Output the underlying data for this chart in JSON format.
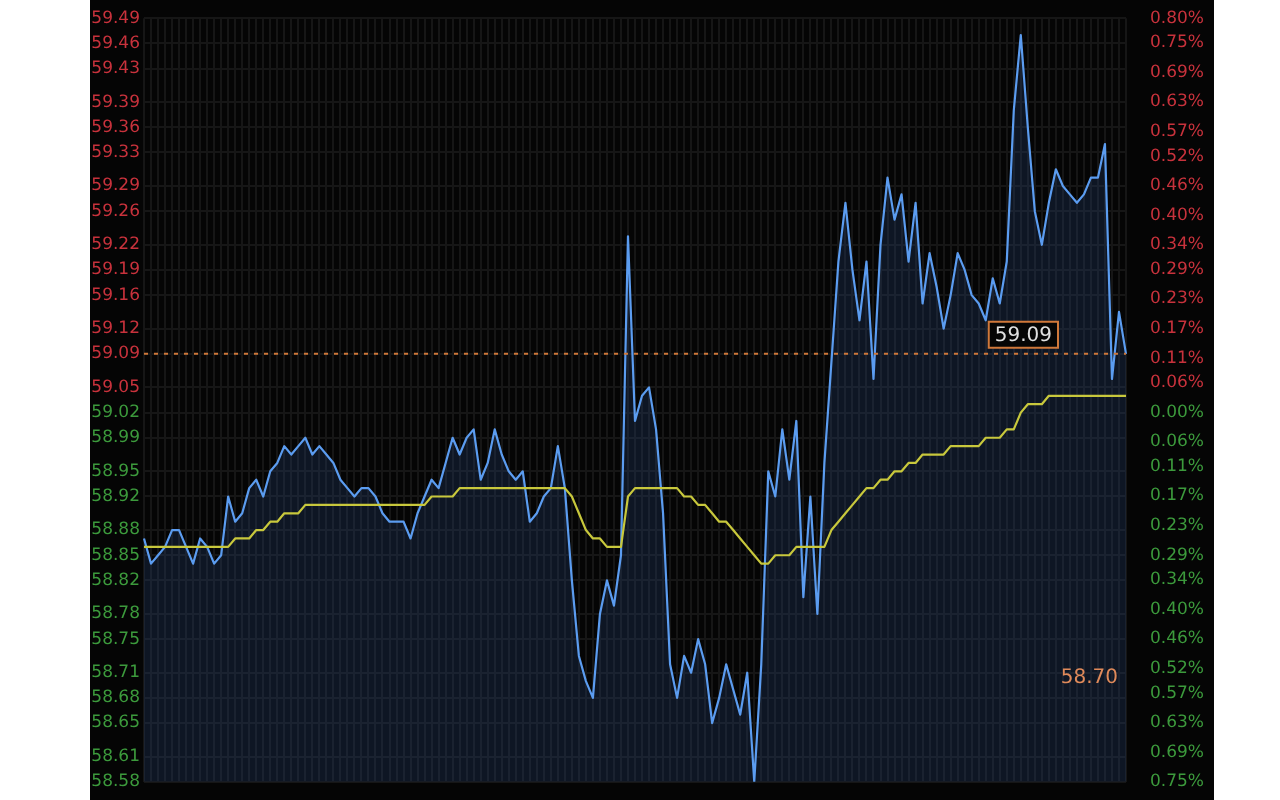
{
  "chart_data": {
    "type": "line",
    "categories": [
      null,
      null,
      null,
      null,
      null,
      null,
      null,
      null,
      null,
      null,
      null,
      null,
      null,
      null,
      null,
      null,
      null,
      null,
      null,
      null,
      null,
      null,
      null,
      null,
      null,
      null,
      null,
      null,
      null,
      null,
      null,
      null,
      null,
      null,
      null,
      null,
      null,
      null,
      null,
      null,
      null,
      null,
      null,
      null,
      null,
      null,
      null,
      null,
      null,
      null,
      null,
      null,
      null,
      null,
      null,
      null,
      null,
      null,
      null,
      null,
      null,
      null,
      null,
      null,
      null,
      null,
      null,
      null,
      null,
      null,
      null,
      null,
      null,
      null,
      null,
      null,
      null,
      null,
      null,
      null,
      null,
      null,
      null,
      null,
      null,
      null,
      null,
      null,
      null,
      null,
      null,
      null,
      null,
      null,
      null,
      null,
      null,
      null,
      null,
      null,
      null,
      null,
      null,
      null,
      null,
      null,
      null,
      null,
      null,
      null,
      null,
      null,
      null,
      null,
      null,
      null,
      null,
      null,
      null,
      null,
      null,
      null,
      null,
      null,
      null,
      null,
      null,
      null,
      null,
      null,
      null,
      null,
      null,
      null,
      null,
      null,
      null,
      null,
      null,
      null,
      null
    ],
    "series": [
      {
        "type": "area",
        "color": "#5b9cf0",
        "values": [
          58.87,
          58.84,
          58.85,
          58.86,
          58.88,
          58.88,
          58.86,
          58.84,
          58.87,
          58.86,
          58.84,
          58.85,
          58.92,
          58.89,
          58.9,
          58.93,
          58.94,
          58.92,
          58.95,
          58.96,
          58.98,
          58.97,
          58.98,
          58.99,
          58.97,
          58.98,
          58.97,
          58.96,
          58.94,
          58.93,
          58.92,
          58.93,
          58.93,
          58.92,
          58.9,
          58.89,
          58.89,
          58.89,
          58.87,
          58.9,
          58.92,
          58.94,
          58.93,
          58.96,
          58.99,
          58.97,
          58.99,
          59.0,
          58.94,
          58.96,
          59.0,
          58.97,
          58.95,
          58.94,
          58.95,
          58.89,
          58.9,
          58.92,
          58.93,
          58.98,
          58.93,
          58.82,
          58.73,
          58.7,
          58.68,
          58.78,
          58.82,
          58.79,
          58.85,
          59.23,
          59.01,
          59.04,
          59.05,
          59.0,
          58.9,
          58.72,
          58.68,
          58.73,
          58.71,
          58.75,
          58.72,
          58.65,
          58.68,
          58.72,
          58.69,
          58.66,
          58.71,
          58.58,
          58.72,
          58.95,
          58.92,
          59.0,
          58.94,
          59.01,
          58.8,
          58.92,
          58.78,
          58.96,
          59.08,
          59.2,
          59.27,
          59.19,
          59.13,
          59.2,
          59.06,
          59.22,
          59.3,
          59.25,
          59.28,
          59.2,
          59.27,
          59.15,
          59.21,
          59.17,
          59.12,
          59.16,
          59.21,
          59.19,
          59.16,
          59.15,
          59.13,
          59.18,
          59.15,
          59.2,
          59.38,
          59.47,
          59.36,
          59.26,
          59.22,
          59.27,
          59.31,
          59.29,
          59.28,
          59.27,
          59.28,
          59.3,
          59.3,
          59.34,
          59.06,
          59.14,
          59.09
        ]
      },
      {
        "color": "#c8c83c",
        "values": [
          58.86,
          58.86,
          58.86,
          58.86,
          58.86,
          58.86,
          58.86,
          58.86,
          58.86,
          58.86,
          58.86,
          58.86,
          58.86,
          58.87,
          58.87,
          58.87,
          58.88,
          58.88,
          58.89,
          58.89,
          58.9,
          58.9,
          58.9,
          58.91,
          58.91,
          58.91,
          58.91,
          58.91,
          58.91,
          58.91,
          58.91,
          58.91,
          58.91,
          58.91,
          58.91,
          58.91,
          58.91,
          58.91,
          58.91,
          58.91,
          58.91,
          58.92,
          58.92,
          58.92,
          58.92,
          58.93,
          58.93,
          58.93,
          58.93,
          58.93,
          58.93,
          58.93,
          58.93,
          58.93,
          58.93,
          58.93,
          58.93,
          58.93,
          58.93,
          58.93,
          58.93,
          58.92,
          58.9,
          58.88,
          58.87,
          58.87,
          58.86,
          58.86,
          58.86,
          58.92,
          58.93,
          58.93,
          58.93,
          58.93,
          58.93,
          58.93,
          58.93,
          58.92,
          58.92,
          58.91,
          58.91,
          58.9,
          58.89,
          58.89,
          58.88,
          58.87,
          58.86,
          58.85,
          58.84,
          58.84,
          58.85,
          58.85,
          58.85,
          58.86,
          58.86,
          58.86,
          58.86,
          58.86,
          58.88,
          58.89,
          58.9,
          58.91,
          58.92,
          58.93,
          58.93,
          58.94,
          58.94,
          58.95,
          58.95,
          58.96,
          58.96,
          58.97,
          58.97,
          58.97,
          58.97,
          58.98,
          58.98,
          58.98,
          58.98,
          58.98,
          58.99,
          58.99,
          58.99,
          59.0,
          59.0,
          59.02,
          59.03,
          59.03,
          59.03,
          59.04,
          59.04,
          59.04,
          59.04,
          59.04,
          59.04,
          59.04,
          59.04,
          59.04,
          59.04,
          59.04,
          59.04
        ]
      }
    ],
    "ylim": [
      58.58,
      59.49
    ],
    "yticks": [
      58.58,
      58.61,
      58.65,
      58.68,
      58.71,
      58.75,
      58.78,
      58.82,
      58.85,
      58.88,
      58.92,
      58.95,
      58.99,
      59.02,
      59.05,
      59.09,
      59.12,
      59.16,
      59.19,
      59.22,
      59.26,
      59.29,
      59.33,
      59.36,
      59.39,
      59.43,
      59.46,
      59.49
    ],
    "y2lim": [
      -0.75,
      0.8
    ],
    "y2ticks": [
      {
        "value": -0.75,
        "label": "0.75%"
      },
      {
        "value": -0.69,
        "label": "0.69%"
      },
      {
        "value": -0.63,
        "label": "0.63%"
      },
      {
        "value": -0.57,
        "label": "0.57%"
      },
      {
        "value": -0.52,
        "label": "0.52%"
      },
      {
        "value": -0.46,
        "label": "0.46%"
      },
      {
        "value": -0.4,
        "label": "0.40%"
      },
      {
        "value": -0.34,
        "label": "0.34%"
      },
      {
        "value": -0.29,
        "label": "0.29%"
      },
      {
        "value": -0.23,
        "label": "0.23%"
      },
      {
        "value": -0.17,
        "label": "0.17%"
      },
      {
        "value": -0.11,
        "label": "0.11%"
      },
      {
        "value": -0.06,
        "label": "0.06%"
      },
      {
        "value": 0,
        "label": "0.00%"
      },
      {
        "value": 0.06,
        "label": "0.06%"
      },
      {
        "value": 0.11,
        "label": "0.11%"
      },
      {
        "value": 0.17,
        "label": "0.17%"
      },
      {
        "value": 0.23,
        "label": "0.23%"
      },
      {
        "value": 0.29,
        "label": "0.29%"
      },
      {
        "value": 0.34,
        "label": "0.34%"
      },
      {
        "value": 0.4,
        "label": "0.40%"
      },
      {
        "value": 0.46,
        "label": "0.46%"
      },
      {
        "value": 0.52,
        "label": "0.52%"
      },
      {
        "value": 0.57,
        "label": "0.57%"
      },
      {
        "value": 0.63,
        "label": "0.63%"
      },
      {
        "value": 0.69,
        "label": "0.69%"
      },
      {
        "value": 0.75,
        "label": "0.75%"
      },
      {
        "value": 0.8,
        "label": "0.80%"
      }
    ],
    "ref_lines": [
      {
        "axis": "y",
        "value": 59.09,
        "label": "59.09",
        "color": "#d0783a",
        "line_style": "dotted"
      }
    ],
    "annotations": [
      "58.70"
    ],
    "grid": true,
    "legend": false
  }
}
